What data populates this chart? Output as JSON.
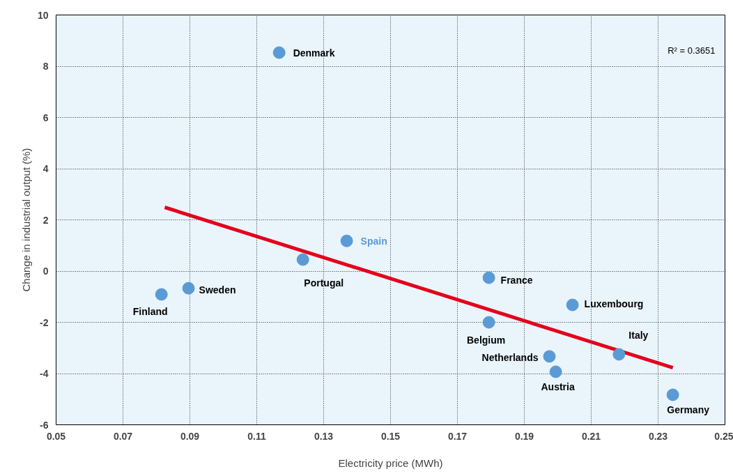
{
  "chart_data": {
    "type": "scatter",
    "xlabel": "Electricity price (MWh)",
    "ylabel": "Change in industrial output (%)",
    "xlim": [
      0.05,
      0.25
    ],
    "xticks": [
      0.05,
      0.07,
      0.09,
      0.11,
      0.13,
      0.15,
      0.17,
      0.19,
      0.21,
      0.23,
      0.25
    ],
    "ylim": [
      -6,
      10
    ],
    "yticks": [
      -6,
      -4,
      -2,
      0,
      2,
      4,
      6,
      8,
      10
    ],
    "grid": true,
    "marker": "circle",
    "series": [
      {
        "color": "#5b9bd5",
        "x": [
          0.1167,
          0.1369,
          0.1238,
          0.0815,
          0.0896,
          0.1794,
          0.1794,
          0.2044,
          0.1975,
          0.1994,
          0.2183,
          0.2344
        ],
        "values": [
          8.53,
          1.18,
          0.45,
          -0.91,
          -0.67,
          -0.26,
          -2.0,
          -1.32,
          -3.33,
          -3.93,
          -3.25,
          -4.83
        ],
        "value_labels": [
          "Denmark",
          "Spain",
          "Portugal",
          "Finland",
          "Sweden",
          "France",
          "Belgium",
          "Luxembourg",
          "Netherlands",
          "Austria",
          "Italy",
          "Germany"
        ]
      },
      {
        "type": "line",
        "color": "#e3001b",
        "x": [
          0.0825,
          0.2344
        ],
        "values": [
          2.49,
          -3.77
        ],
        "line_style": "solid",
        "marker": "none"
      }
    ],
    "annotations": [
      "R² = 0.3651"
    ]
  }
}
